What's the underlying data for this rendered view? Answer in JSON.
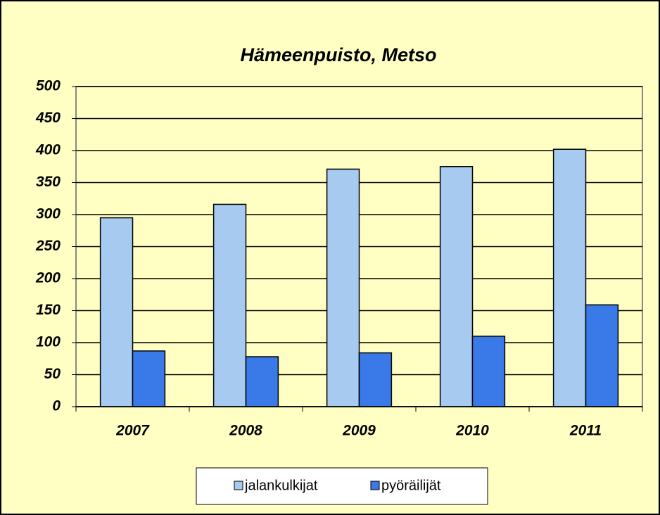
{
  "chart_data": {
    "type": "bar",
    "title": "Hämeenpuisto, Metso",
    "categories": [
      "2007",
      "2008",
      "2009",
      "2010",
      "2011"
    ],
    "series": [
      {
        "name": "jalankulkijat",
        "color": "#a6caf0",
        "values": [
          295,
          316,
          371,
          375,
          402
        ]
      },
      {
        "name": "pyöräilijät",
        "color": "#3a7ae8",
        "values": [
          87,
          78,
          84,
          110,
          159
        ]
      }
    ],
    "ylim": [
      0,
      500
    ],
    "yticks": [
      0,
      50,
      100,
      150,
      200,
      250,
      300,
      350,
      400,
      450,
      500
    ],
    "grid": true,
    "legend": "bottom"
  }
}
